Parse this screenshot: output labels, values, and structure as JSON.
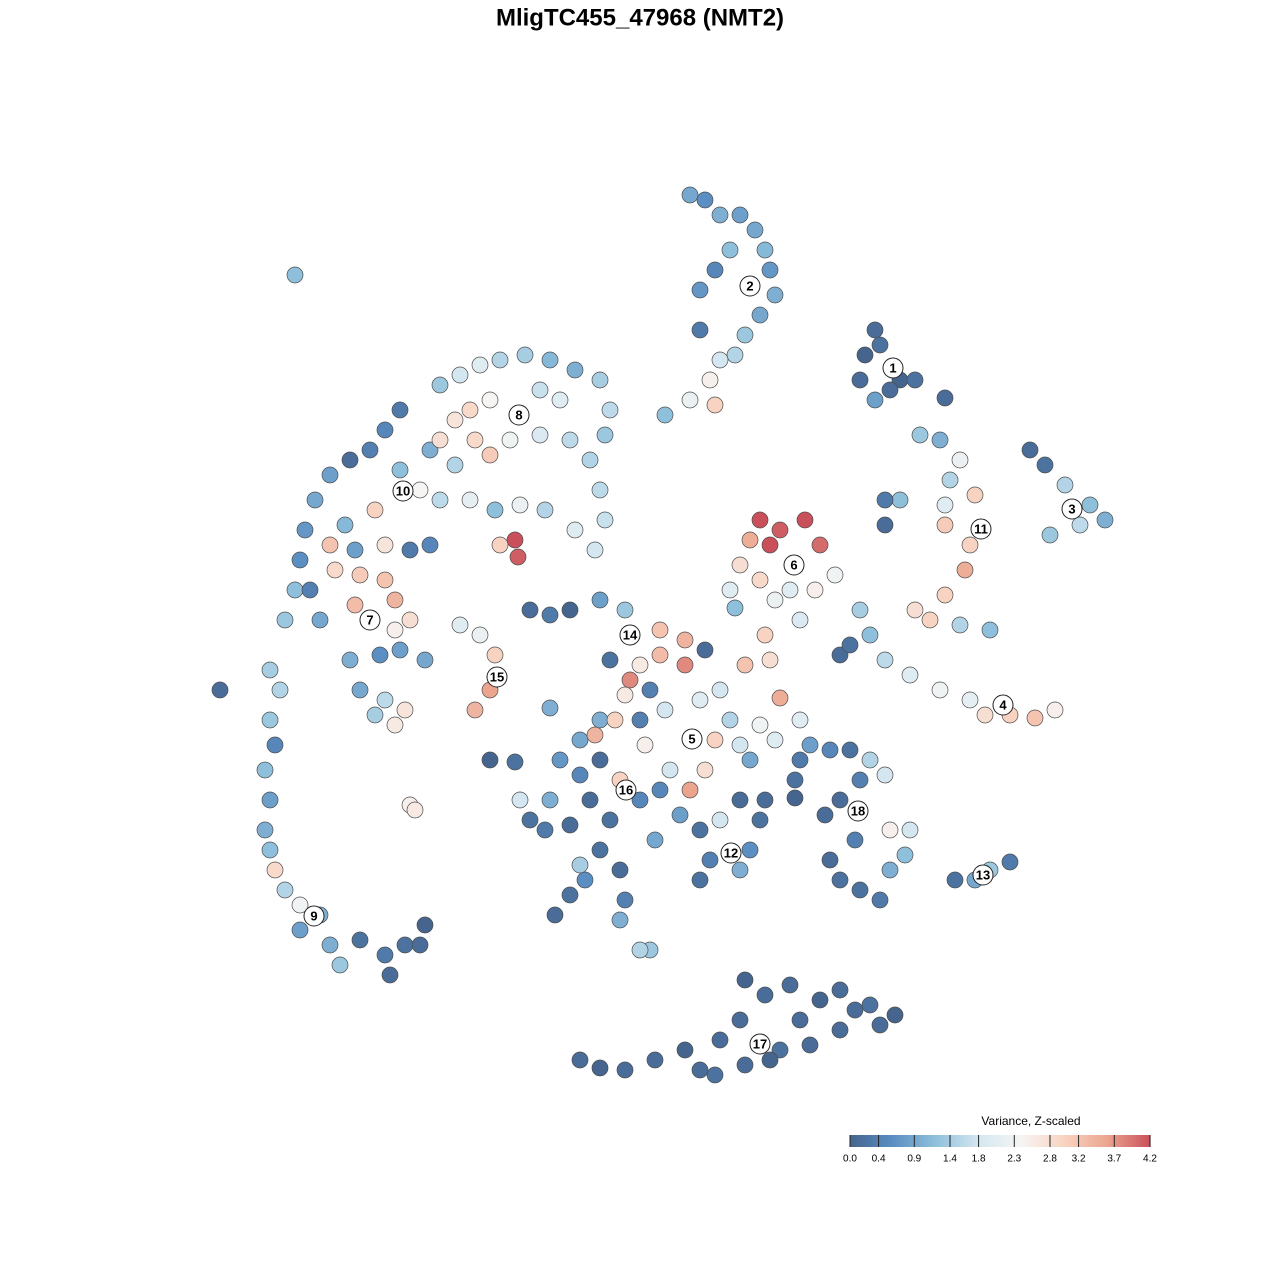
{
  "chart_data": {
    "type": "scatter",
    "title": "MligTC455_47968 (NMT2)",
    "xlim": [
      18,
      114
    ],
    "ylim": [
      14,
      111
    ],
    "x": [
      69,
      70.5,
      72,
      74,
      75.5,
      76.5,
      77,
      77.5,
      76,
      74.5,
      73.5,
      72,
      71,
      71.5,
      69,
      66.5,
      70,
      71.5,
      73,
      70,
      87.5,
      86.5,
      88,
      86,
      90,
      91.5,
      89,
      87.5,
      94.5,
      103,
      104.5,
      106.5,
      109,
      110.5,
      105,
      108,
      92,
      94,
      96,
      95,
      97.5,
      94.5,
      90,
      88.5,
      88.5,
      97,
      96.5,
      94.5,
      91.5,
      93,
      96,
      99,
      94.5,
      86,
      87,
      88.5,
      91,
      94,
      97,
      98.5,
      101,
      103.5,
      105.5,
      84,
      85,
      76,
      78,
      80.5,
      82,
      75,
      77,
      74,
      76,
      79,
      81.5,
      83.5,
      73,
      73.5,
      77.5,
      80,
      76.5,
      77,
      74.5,
      78,
      80,
      53,
      55,
      57,
      60,
      62.5,
      66,
      68.5,
      68.5,
      66,
      64,
      70.5,
      61,
      63,
      65,
      62.5,
      60,
      58,
      59.5,
      61.5,
      64,
      66.5,
      70,
      72,
      73,
      71.5,
      70.5,
      69,
      67,
      66,
      64.5,
      74,
      76,
      77.5,
      75,
      56,
      58,
      60,
      59,
      61,
      64,
      62,
      55,
      53,
      52,
      54.5,
      57,
      60,
      62,
      58.5,
      57,
      55.5,
      62.5,
      62,
      65,
      58,
      65.5,
      68,
      70,
      72,
      74,
      76,
      75,
      71,
      70,
      74,
      76.5,
      79.5,
      79.5,
      81,
      83,
      85,
      87,
      86,
      88.5,
      84,
      82.5,
      85.5,
      83,
      84,
      86,
      88,
      89,
      91,
      90.5,
      89,
      80,
      95.5,
      97.5,
      99,
      101,
      58,
      60,
      62.5,
      65.5,
      68.5,
      70,
      71.5,
      72,
      74,
      74.5,
      76.5,
      79,
      80,
      82,
      84,
      85.5,
      87,
      89.5,
      84,
      81,
      78,
      74.5,
      77,
      88,
      27,
      28,
      27,
      27.5,
      26.5,
      27,
      26.5,
      27,
      27.5,
      28.5,
      30,
      32,
      30,
      33,
      34,
      36,
      38.5,
      40.5,
      42.5,
      42,
      39,
      22,
      29.5,
      40,
      38.5,
      37,
      35,
      33,
      31.5,
      30.5,
      30,
      29.5,
      28.5,
      32,
      31,
      33,
      34.5,
      37.5,
      35.5,
      33.5,
      36,
      38.5,
      39.5,
      35.5,
      39.5,
      41,
      38.5,
      41,
      43,
      42,
      44,
      40,
      43,
      45.5,
      35,
      38,
      40,
      42.5,
      36,
      38.5,
      40.5,
      39.5,
      37.5,
      44,
      46,
      48,
      50,
      52.5,
      55,
      57.5,
      60,
      61,
      60.5,
      59,
      60,
      60.5,
      59.5,
      57.5,
      54.5,
      52,
      49.5,
      47,
      45.5,
      47.5,
      49,
      51,
      54,
      57,
      56,
      54,
      49,
      47,
      44,
      46,
      48,
      49.5,
      49,
      47.5,
      51.5,
      51.8,
      50,
      41,
      41.5,
      49,
      51.5,
      55,
      64
    ],
    "y": [
      108.5,
      108,
      106.5,
      106.5,
      105,
      103,
      101,
      98.5,
      96.5,
      94.5,
      92.5,
      92,
      90,
      87.5,
      88,
      86.5,
      99,
      101,
      103,
      95,
      95,
      92.5,
      93.5,
      90,
      90,
      90,
      89,
      88,
      88.2,
      83,
      81.5,
      79.5,
      77.5,
      76,
      74.5,
      75.5,
      84.5,
      84,
      82,
      80,
      78.5,
      77.5,
      78,
      78,
      75.5,
      73.5,
      71,
      68.5,
      67,
      66,
      65.5,
      65,
      75.5,
      67,
      64.5,
      62,
      60.5,
      59,
      58,
      56.5,
      56.5,
      56.2,
      57,
      62.5,
      63.5,
      76,
      75,
      76,
      73.5,
      74,
      73.5,
      71.5,
      70,
      69,
      69,
      70.5,
      69,
      67.2,
      68,
      66,
      64.5,
      62,
      61.5,
      58.2,
      56,
      67,
      66.5,
      67,
      68,
      67,
      65,
      64,
      61.5,
      62.5,
      61.5,
      63,
      62,
      60,
      59,
      58.5,
      56,
      54,
      54.5,
      56,
      56,
      57,
      58,
      59,
      56,
      54,
      51,
      49,
      51,
      49,
      53.5,
      53.5,
      55.5,
      54,
      52,
      52,
      50.5,
      52,
      48,
      46,
      48,
      50,
      48,
      46,
      48,
      45,
      45.5,
      43,
      41,
      40,
      38.5,
      36.5,
      38,
      36,
      33,
      41.5,
      44,
      46.5,
      45,
      46,
      48,
      46,
      43,
      42,
      40,
      41,
      48,
      50,
      48.2,
      53.5,
      53,
      53,
      52,
      50,
      50.5,
      48,
      46.5,
      44,
      42,
      40,
      39,
      38,
      45,
      45,
      42.5,
      41,
      52,
      40,
      40,
      41,
      41.8,
      22,
      21.2,
      21,
      22,
      23,
      21,
      20.5,
      24,
      26,
      30,
      28.5,
      29.5,
      26,
      28,
      29,
      27,
      27.5,
      26.5,
      25,
      23.5,
      23,
      21.5,
      22,
      25.5,
      61,
      59,
      56,
      53.5,
      51,
      48,
      45,
      43,
      41,
      39,
      37.5,
      36.5,
      35,
      33.5,
      31.5,
      34,
      32.5,
      33.5,
      35.5,
      33.5,
      30.5,
      59,
      100.5,
      87,
      85,
      83,
      82,
      80.5,
      78,
      75,
      72,
      69,
      66,
      66,
      69,
      73.5,
      75.5,
      77,
      73,
      71,
      70.5,
      70,
      68,
      67.5,
      65,
      66,
      73.5,
      73,
      73.5,
      79,
      78,
      81,
      83,
      81.5,
      62,
      62.5,
      63,
      62,
      59,
      58,
      57,
      55.5,
      56.5,
      89.5,
      90.5,
      91.5,
      92,
      92.5,
      92,
      91,
      90,
      87,
      84.5,
      82,
      79,
      76,
      73,
      75,
      77,
      77.5,
      77,
      78,
      86,
      84,
      82.5,
      84,
      84.5,
      84,
      88,
      89,
      88,
      87,
      84,
      65.5,
      64.5,
      62.5,
      59,
      57,
      74,
      72.3,
      73.5,
      47.5,
      47,
      52,
      51.8,
      57.2,
      33
    ],
    "values": [
      0.9,
      0.6,
      1.0,
      0.8,
      0.9,
      1.1,
      0.7,
      1.0,
      0.9,
      1.3,
      1.5,
      1.8,
      2.5,
      3.0,
      2.2,
      1.2,
      0.7,
      0.5,
      1.2,
      0.3,
      0.1,
      0.0,
      0.2,
      0.1,
      0.0,
      0.2,
      0.1,
      0.8,
      0.1,
      0.1,
      0.2,
      1.5,
      1.2,
      1.0,
      1.3,
      1.6,
      1.3,
      1.0,
      2.2,
      1.5,
      3.0,
      2.0,
      1.2,
      0.3,
      0.1,
      3.0,
      3.5,
      3.0,
      2.8,
      3.0,
      1.5,
      1.2,
      3.1,
      1.4,
      1.2,
      1.6,
      2.0,
      2.3,
      2.1,
      2.8,
      3.0,
      3.2,
      2.5,
      0.1,
      0.2,
      4.2,
      4.1,
      4.2,
      4.0,
      3.5,
      4.2,
      2.8,
      2.9,
      2.0,
      2.5,
      2.3,
      2.0,
      1.2,
      2.2,
      1.9,
      3.0,
      2.8,
      3.2,
      3.5,
      2.0,
      0.1,
      0.3,
      0.0,
      0.8,
      1.3,
      3.2,
      3.4,
      3.8,
      3.3,
      2.6,
      0.1,
      0.2,
      3.8,
      0.4,
      2.6,
      1.0,
      0.9,
      3.4,
      3.0,
      0.4,
      1.8,
      2.0,
      1.8,
      1.5,
      3.0,
      2.8,
      3.6,
      1.8,
      0.5,
      2.5,
      1.8,
      2.3,
      2.0,
      0.9,
      0.7,
      0.5,
      0.1,
      0.1,
      0.2,
      0.5,
      3.0,
      1.0,
      0.2,
      1.8,
      0.3,
      0.1,
      0.2,
      0.1,
      0.6,
      0.2,
      0.1,
      0.4,
      1.0,
      1.3,
      1.4,
      0.9,
      0.8,
      0.2,
      1.8,
      0.1,
      0.2,
      0.6,
      0.4,
      0.2,
      1.0,
      0.1,
      0.2,
      0.0,
      0.8,
      0.5,
      0.2,
      1.5,
      0.4,
      1.8,
      0.1,
      0.1,
      0.4,
      0.1,
      0.2,
      0.2,
      0.3,
      2.5,
      1.8,
      1.2,
      1.0,
      0.3,
      0.2,
      0.9,
      1.3,
      0.3,
      0.1,
      0.0,
      0.1,
      0.1,
      0.0,
      0.1,
      0.2,
      0.1,
      0.1,
      0.0,
      0.1,
      0.1,
      0.1,
      0.0,
      0.1,
      0.1,
      0.2,
      0.0,
      0.1,
      0.1,
      0.2,
      0.1,
      0.0,
      0.1,
      1.4,
      1.5,
      1.3,
      0.5,
      1.2,
      0.8,
      1.0,
      1.2,
      2.9,
      1.5,
      2.3,
      1.0,
      0.8,
      1.0,
      1.3,
      0.2,
      0.3,
      0.2,
      0.0,
      0.1,
      0.1,
      0.1,
      1.2,
      0.3,
      0.5,
      0.4,
      0.1,
      0.8,
      0.9,
      0.7,
      0.6,
      1.2,
      1.3,
      0.9,
      0.4,
      3.2,
      1.1,
      3.0,
      0.8,
      2.9,
      3.1,
      3.2,
      3.4,
      3.3,
      2.5,
      2.8,
      2.7,
      0.3,
      0.5,
      2.4,
      1.6,
      1.2,
      1.0,
      1.5,
      1.0,
      0.6,
      0.8,
      0.9,
      0.9,
      1.6,
      2.7,
      2.6,
      1.4,
      1.3,
      1.8,
      2.0,
      1.5,
      1.4,
      1.1,
      1.0,
      1.4,
      1.6,
      1.3,
      1.5,
      1.6,
      1.7,
      1.8,
      2.0,
      1.5,
      2.2,
      1.2,
      2.1,
      2.7,
      2.9,
      3.1,
      2.3,
      1.9,
      1.6,
      2.0,
      1.7,
      2.4,
      2.9,
      2.8,
      2.0,
      2.2,
      3.0,
      3.6,
      3.4,
      4.2,
      4.1,
      3.0,
      2.5,
      2.6,
      0.0,
      0.2,
      1.0,
      1.5
    ],
    "clusters": [
      {
        "label": 1,
        "x": 89.3,
        "y": 91.2
      },
      {
        "label": 2,
        "x": 75,
        "y": 99.4
      },
      {
        "label": 3,
        "x": 107.2,
        "y": 77.1
      },
      {
        "label": 4,
        "x": 100.3,
        "y": 57.5
      },
      {
        "label": 5,
        "x": 69.2,
        "y": 54.1
      },
      {
        "label": 6,
        "x": 79.4,
        "y": 71.5
      },
      {
        "label": 7,
        "x": 37,
        "y": 66
      },
      {
        "label": 8,
        "x": 51.9,
        "y": 86.5
      },
      {
        "label": 9,
        "x": 31.4,
        "y": 36.4
      },
      {
        "label": 10,
        "x": 40.3,
        "y": 78.9
      },
      {
        "label": 11,
        "x": 98.1,
        "y": 75.1
      },
      {
        "label": 12,
        "x": 73.1,
        "y": 42.7
      },
      {
        "label": 13,
        "x": 98.3,
        "y": 40.5
      },
      {
        "label": 14,
        "x": 63,
        "y": 64.5
      },
      {
        "label": 15,
        "x": 49.7,
        "y": 60.3
      },
      {
        "label": 16,
        "x": 62.6,
        "y": 49
      },
      {
        "label": 17,
        "x": 76,
        "y": 23.6
      },
      {
        "label": 18,
        "x": 85.8,
        "y": 46.9
      }
    ],
    "colorbar": {
      "title": "Variance, Z-scaled",
      "clim": [
        0,
        4.2
      ],
      "colormap": [
        "#45658f",
        "#5b8ec2",
        "#8fc0db",
        "#d4e7f1",
        "#f6f5f4",
        "#f8d3c1",
        "#eba58f",
        "#c9505b"
      ],
      "ticks": [
        {
          "value": 0,
          "label": "0.0"
        },
        0.4,
        0.9,
        1.4,
        1.8,
        2.3,
        2.8,
        3.2,
        3.7,
        4.2
      ]
    }
  }
}
